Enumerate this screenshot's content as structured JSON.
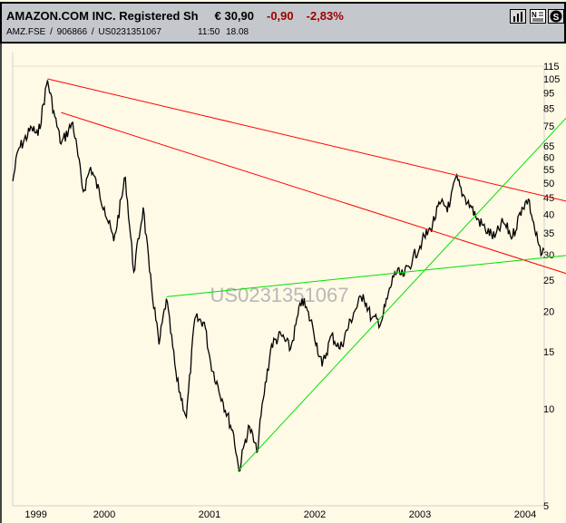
{
  "header": {
    "title": "AMAZON.COM INC. Registered Sh",
    "price": "€ 30,90",
    "change": "-0,90",
    "change_pct": "-2,83%",
    "symbol_line": "AMZ.FSE  /  906866  /  US0231351067",
    "time": "11:50",
    "date": "18.08",
    "icons": [
      "bar-chart-icon",
      "news-icon",
      "s-icon"
    ]
  },
  "colors": {
    "up_trend": "#00e000",
    "down_trend": "#ff0000",
    "price": "#000000",
    "background": "#fffae6"
  },
  "chart_data": {
    "type": "line",
    "title": "AMAZON.COM INC. Registered Sh",
    "watermark": "US0231351067",
    "yscale": "log",
    "ylim": [
      5,
      115
    ],
    "xlim": [
      1999.13,
      2004.39
    ],
    "yticks": [
      5,
      10,
      15,
      20,
      25,
      30,
      35,
      40,
      45,
      50,
      55,
      60,
      65,
      75,
      85,
      95,
      105,
      115
    ],
    "xticks": [
      {
        "label": "1999",
        "x": 1999.35
      },
      {
        "label": "2000",
        "x": 2000.0
      },
      {
        "label": "2001",
        "x": 2001.0
      },
      {
        "label": "2002",
        "x": 2002.0
      },
      {
        "label": "2003",
        "x": 2003.0
      },
      {
        "label": "2004",
        "x": 2004.0
      }
    ],
    "series": [
      {
        "name": "price",
        "x": [
          1999.13,
          1999.18,
          1999.31,
          1999.37,
          1999.46,
          1999.53,
          1999.59,
          1999.7,
          1999.8,
          1999.87,
          2000.0,
          2000.09,
          2000.2,
          2000.28,
          2000.37,
          2000.43,
          2000.52,
          2000.59,
          2000.69,
          2000.78,
          2000.86,
          2000.95,
          2001.01,
          2001.12,
          2001.23,
          2001.28,
          2001.34,
          2001.38,
          2001.45,
          2001.51,
          2001.59,
          2001.68,
          2001.77,
          2001.88,
          2001.98,
          2002.07,
          2002.16,
          2002.24,
          2002.37,
          2002.46,
          2002.54,
          2002.63,
          2002.76,
          2002.84,
          2002.93,
          2003.02,
          2003.1,
          2003.19,
          2003.28,
          2003.34,
          2003.41,
          2003.49,
          2003.53,
          2003.62,
          2003.71,
          2003.79,
          2003.88,
          2003.97,
          2004.03,
          2004.09,
          2004.15,
          2004.18
        ],
        "y": [
          50.6,
          63,
          74,
          70,
          104,
          80,
          66,
          77,
          47,
          56,
          42,
          33,
          52,
          26.5,
          42,
          26.5,
          15.8,
          21.9,
          12.2,
          9.4,
          19,
          18.5,
          13.9,
          10.7,
          8.3,
          6.4,
          8.0,
          8.8,
          7.3,
          10.7,
          15.8,
          16.9,
          15.3,
          21.9,
          18,
          13.5,
          16.9,
          15.3,
          19.8,
          22.6,
          19,
          18.5,
          26.5,
          25.7,
          29,
          33,
          36,
          43,
          42,
          52,
          46,
          42,
          39.3,
          36,
          33.8,
          37.8,
          34,
          42,
          44.5,
          36,
          29.8,
          31
        ]
      }
    ],
    "trendlines": [
      {
        "name": "resistance-1",
        "color": "down_trend",
        "x": [
          1999.46,
          2004.39
        ],
        "y": [
          105,
          43.9
        ]
      },
      {
        "name": "resistance-2",
        "color": "down_trend",
        "x": [
          1999.59,
          2004.39
        ],
        "y": [
          82.6,
          26.2
        ]
      },
      {
        "name": "support-1",
        "color": "up_trend",
        "x": [
          2000.59,
          2004.39
        ],
        "y": [
          22.2,
          29.8
        ]
      },
      {
        "name": "support-2",
        "color": "up_trend",
        "x": [
          2001.27,
          2004.39
        ],
        "y": [
          6.4,
          79.5
        ]
      }
    ]
  }
}
